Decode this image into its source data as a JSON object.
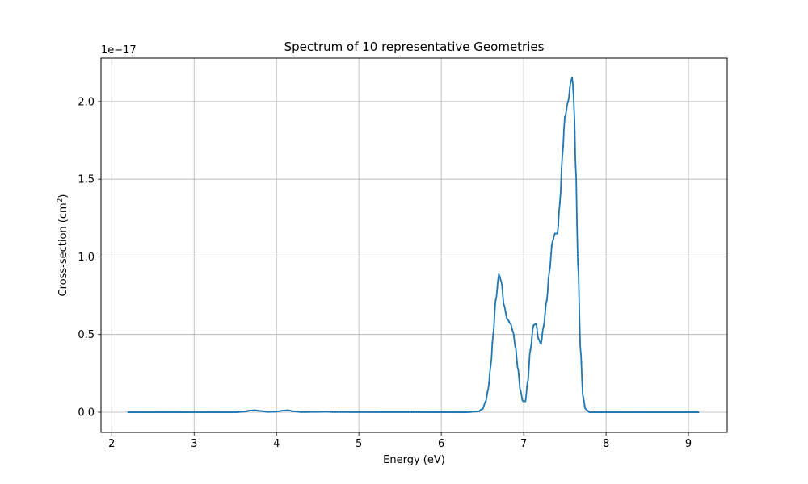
{
  "chart_data": {
    "type": "line",
    "title": "Spectrum of 10 representative Geometries",
    "xlabel": "Energy (eV)",
    "ylabel_main": "Cross-section (cm",
    "ylabel_sup": "2",
    "ylabel_end": ")",
    "offset_text": "1e−17",
    "xlim": [
      1.87,
      9.47
    ],
    "ylim": [
      -0.13,
      2.28
    ],
    "xticks": [
      2,
      3,
      4,
      5,
      6,
      7,
      8,
      9
    ],
    "xtick_labels": [
      "2",
      "3",
      "4",
      "5",
      "6",
      "7",
      "8",
      "9"
    ],
    "yticks": [
      0.0,
      0.5,
      1.0,
      1.5,
      2.0
    ],
    "ytick_labels": [
      "0.0",
      "0.5",
      "1.0",
      "1.5",
      "2.0"
    ],
    "grid": true,
    "color": "#1f77b4",
    "x_range": [
      2.2,
      9.12
    ],
    "series": [
      {
        "points": [
          [
            2.2,
            0.0
          ],
          [
            3.5,
            0.0
          ],
          [
            3.6,
            0.003
          ],
          [
            3.68,
            0.01
          ],
          [
            3.74,
            0.012
          ],
          [
            3.8,
            0.008
          ],
          [
            3.9,
            0.002
          ],
          [
            4.0,
            0.004
          ],
          [
            4.08,
            0.01
          ],
          [
            4.14,
            0.012
          ],
          [
            4.2,
            0.006
          ],
          [
            4.3,
            0.001
          ],
          [
            4.5,
            0.002
          ],
          [
            4.6,
            0.003
          ],
          [
            4.7,
            0.001
          ],
          [
            6.3,
            0.0
          ],
          [
            6.45,
            0.005
          ],
          [
            6.5,
            0.02
          ],
          [
            6.54,
            0.07
          ],
          [
            6.57,
            0.15
          ],
          [
            6.6,
            0.3
          ],
          [
            6.63,
            0.5
          ],
          [
            6.66,
            0.72
          ],
          [
            6.7,
            0.885
          ],
          [
            6.73,
            0.84
          ],
          [
            6.76,
            0.69
          ],
          [
            6.8,
            0.6
          ],
          [
            6.84,
            0.57
          ],
          [
            6.87,
            0.52
          ],
          [
            6.9,
            0.42
          ],
          [
            6.93,
            0.28
          ],
          [
            6.96,
            0.14
          ],
          [
            6.99,
            0.07
          ],
          [
            7.02,
            0.07
          ],
          [
            7.05,
            0.2
          ],
          [
            7.08,
            0.4
          ],
          [
            7.12,
            0.56
          ],
          [
            7.15,
            0.57
          ],
          [
            7.18,
            0.47
          ],
          [
            7.21,
            0.44
          ],
          [
            7.24,
            0.55
          ],
          [
            7.28,
            0.72
          ],
          [
            7.31,
            0.9
          ],
          [
            7.35,
            1.1
          ],
          [
            7.38,
            1.15
          ],
          [
            7.41,
            1.15
          ],
          [
            7.44,
            1.35
          ],
          [
            7.47,
            1.65
          ],
          [
            7.5,
            1.9
          ],
          [
            7.54,
            2.0
          ],
          [
            7.57,
            2.12
          ],
          [
            7.59,
            2.16
          ],
          [
            7.61,
            2.0
          ],
          [
            7.63,
            1.6
          ],
          [
            7.66,
            0.95
          ],
          [
            7.69,
            0.4
          ],
          [
            7.72,
            0.1
          ],
          [
            7.75,
            0.02
          ],
          [
            7.8,
            0.0
          ],
          [
            9.12,
            0.0
          ]
        ]
      }
    ]
  }
}
